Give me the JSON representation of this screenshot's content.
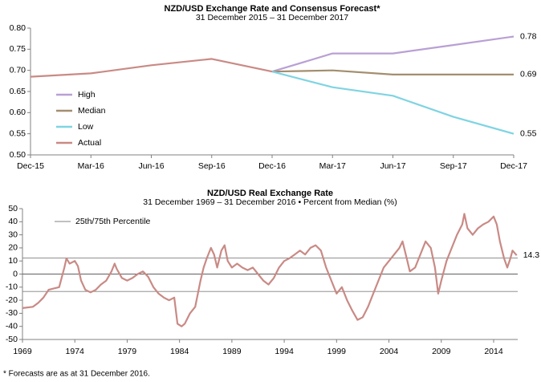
{
  "chart_data": [
    {
      "type": "line",
      "title": "NZD/USD  Exchange Rate and Consensus Forecast*",
      "subtitle": "31 December 2015 – 31 December 2017",
      "categories": [
        "Dec-15",
        "Mar-16",
        "Jun-16",
        "Sep-16",
        "Dec-16",
        "Mar-17",
        "Jun-17",
        "Sep-17",
        "Dec-17"
      ],
      "ylim": [
        0.5,
        0.8
      ],
      "yticks": [
        {
          "value": 0.5,
          "label": "0.50"
        },
        0.55,
        {
          "value": 0.6,
          "label": "0.60"
        },
        0.65,
        {
          "value": 0.7,
          "label": "0.70"
        },
        0.75,
        {
          "value": 0.8,
          "label": "0.80"
        }
      ],
      "legend": "left",
      "end_labels": true,
      "series": [
        {
          "name": "High",
          "color": "#b9a0d4",
          "values": [
            null,
            null,
            null,
            null,
            0.697,
            0.74,
            0.74,
            0.76,
            0.78
          ]
        },
        {
          "name": "Median",
          "color": "#a38e6e",
          "values": [
            null,
            null,
            null,
            null,
            0.697,
            0.7,
            0.69,
            0.69,
            0.69
          ]
        },
        {
          "name": "Low",
          "color": "#7fd4e2",
          "values": [
            null,
            null,
            null,
            null,
            0.697,
            0.66,
            0.64,
            0.59,
            0.55
          ]
        },
        {
          "name": "Actual",
          "color": "#c98a85",
          "values": [
            0.685,
            0.693,
            0.712,
            0.727,
            0.697,
            null,
            null,
            null,
            null
          ]
        }
      ]
    },
    {
      "type": "line",
      "title": "NZD/USD  Real Exchange Rate",
      "subtitle": "31 December 1969 – 31 December 2016 • Percent from Median (%)",
      "xlim": [
        1969,
        2016.3
      ],
      "xticks": [
        1969,
        1974,
        1979,
        1984,
        1989,
        1994,
        1999,
        2004,
        2009,
        2014
      ],
      "ylim": [
        -50,
        50
      ],
      "yticks": [
        -50,
        -40,
        -30,
        -20,
        -10,
        0,
        10,
        20,
        30,
        40,
        50
      ],
      "reference_lines": {
        "name": "25th/75th Percentile",
        "color": "#808080",
        "values": [
          12.3,
          -13.3
        ]
      },
      "end_labels": true,
      "series": [
        {
          "color": "#c98a85",
          "x": [
            1969,
            1970,
            1970.5,
            1971,
            1971.5,
            1972,
            1972.5,
            1973,
            1973.2,
            1973.5,
            1974,
            1974.3,
            1974.6,
            1975,
            1975.5,
            1976,
            1976.5,
            1977,
            1977.5,
            1977.8,
            1978,
            1978.5,
            1979,
            1979.5,
            1980,
            1980.5,
            1981,
            1981.5,
            1982,
            1982.5,
            1983,
            1983.5,
            1983.8,
            1984.2,
            1984.5,
            1985,
            1985.5,
            1986,
            1986.3,
            1986.6,
            1987,
            1987.3,
            1987.6,
            1988,
            1988.3,
            1988.6,
            1989,
            1989.5,
            1990,
            1990.5,
            1991,
            1991.5,
            1992,
            1992.5,
            1993,
            1993.5,
            1994,
            1994.5,
            1995,
            1995.5,
            1996,
            1996.5,
            1997,
            1997.5,
            1998,
            1998.5,
            1999,
            1999.5,
            2000,
            2000.5,
            2001,
            2001.5,
            2002,
            2002.5,
            2003,
            2003.5,
            2004,
            2004.5,
            2005,
            2005.3,
            2005.7,
            2006,
            2006.5,
            2007,
            2007.5,
            2008,
            2008.4,
            2008.7,
            2009,
            2009.5,
            2010,
            2010.5,
            2011,
            2011.2,
            2011.5,
            2012,
            2012.5,
            2013,
            2013.5,
            2014,
            2014.3,
            2014.6,
            2015,
            2015.3,
            2015.6,
            2015.8,
            2016.2
          ],
          "values": [
            -26,
            -25,
            -22,
            -18,
            -12,
            -11,
            -10,
            5,
            12,
            8,
            10,
            6,
            -5,
            -12,
            -14,
            -12,
            -8,
            -5,
            2,
            8,
            4,
            -3,
            -5,
            -3,
            0,
            2,
            -2,
            -10,
            -15,
            -18,
            -20,
            -18,
            -38,
            -40,
            -38,
            -30,
            -25,
            -5,
            5,
            12,
            20,
            15,
            5,
            18,
            22,
            10,
            5,
            8,
            5,
            3,
            5,
            0,
            -5,
            -8,
            -3,
            5,
            10,
            12,
            15,
            18,
            15,
            20,
            22,
            18,
            5,
            -5,
            -15,
            -10,
            -20,
            -28,
            -35,
            -33,
            -25,
            -15,
            -5,
            5,
            10,
            15,
            20,
            25,
            12,
            2,
            5,
            15,
            25,
            20,
            5,
            -15,
            -5,
            10,
            20,
            30,
            38,
            46,
            35,
            30,
            35,
            38,
            40,
            44,
            38,
            25,
            12,
            5,
            12,
            18,
            14.3
          ]
        }
      ]
    }
  ],
  "footnote": "* Forecasts are as at 31 December 2016."
}
